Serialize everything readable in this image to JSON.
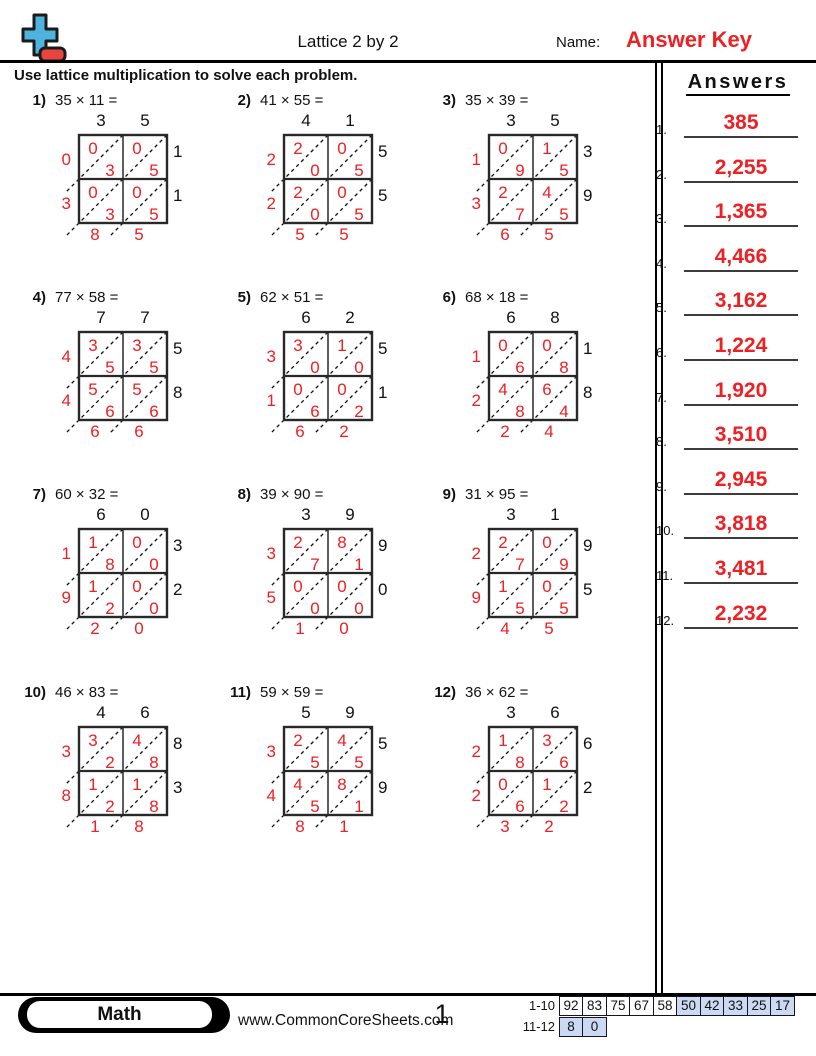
{
  "header": {
    "title": "Lattice 2 by 2",
    "name_label": "Name:",
    "answer_key": "Answer Key"
  },
  "instruction": "Use lattice multiplication to solve each problem.",
  "answers_panel": {
    "title": "Answers",
    "items": [
      {
        "num": "1.",
        "value": "385"
      },
      {
        "num": "2.",
        "value": "2,255"
      },
      {
        "num": "3.",
        "value": "1,365"
      },
      {
        "num": "4.",
        "value": "4,466"
      },
      {
        "num": "5.",
        "value": "3,162"
      },
      {
        "num": "6.",
        "value": "1,224"
      },
      {
        "num": "7.",
        "value": "1,920"
      },
      {
        "num": "8.",
        "value": "3,510"
      },
      {
        "num": "9.",
        "value": "2,945"
      },
      {
        "num": "10.",
        "value": "3,818"
      },
      {
        "num": "11.",
        "value": "3,481"
      },
      {
        "num": "12.",
        "value": "2,232"
      }
    ]
  },
  "problems": [
    {
      "num": "1)",
      "equation": "35 × 11 =",
      "top": [
        "3",
        "5"
      ],
      "right": [
        "1",
        "1"
      ],
      "cells": [
        [
          "0",
          "3"
        ],
        [
          "0",
          "5"
        ],
        [
          "0",
          "3"
        ],
        [
          "0",
          "5"
        ]
      ],
      "left": [
        "0",
        "3"
      ],
      "bottom": [
        "8",
        "5"
      ]
    },
    {
      "num": "2)",
      "equation": "41 × 55 =",
      "top": [
        "4",
        "1"
      ],
      "right": [
        "5",
        "5"
      ],
      "cells": [
        [
          "2",
          "0"
        ],
        [
          "0",
          "5"
        ],
        [
          "2",
          "0"
        ],
        [
          "0",
          "5"
        ]
      ],
      "left": [
        "2",
        "2"
      ],
      "bottom": [
        "5",
        "5"
      ]
    },
    {
      "num": "3)",
      "equation": "35 × 39 =",
      "top": [
        "3",
        "5"
      ],
      "right": [
        "3",
        "9"
      ],
      "cells": [
        [
          "0",
          "9"
        ],
        [
          "1",
          "5"
        ],
        [
          "2",
          "7"
        ],
        [
          "4",
          "5"
        ]
      ],
      "left": [
        "1",
        "3"
      ],
      "bottom": [
        "6",
        "5"
      ]
    },
    {
      "num": "4)",
      "equation": "77 × 58 =",
      "top": [
        "7",
        "7"
      ],
      "right": [
        "5",
        "8"
      ],
      "cells": [
        [
          "3",
          "5"
        ],
        [
          "3",
          "5"
        ],
        [
          "5",
          "6"
        ],
        [
          "5",
          "6"
        ]
      ],
      "left": [
        "4",
        "4"
      ],
      "bottom": [
        "6",
        "6"
      ]
    },
    {
      "num": "5)",
      "equation": "62 × 51 =",
      "top": [
        "6",
        "2"
      ],
      "right": [
        "5",
        "1"
      ],
      "cells": [
        [
          "3",
          "0"
        ],
        [
          "1",
          "0"
        ],
        [
          "0",
          "6"
        ],
        [
          "0",
          "2"
        ]
      ],
      "left": [
        "3",
        "1"
      ],
      "bottom": [
        "6",
        "2"
      ]
    },
    {
      "num": "6)",
      "equation": "68 × 18 =",
      "top": [
        "6",
        "8"
      ],
      "right": [
        "1",
        "8"
      ],
      "cells": [
        [
          "0",
          "6"
        ],
        [
          "0",
          "8"
        ],
        [
          "4",
          "8"
        ],
        [
          "6",
          "4"
        ]
      ],
      "left": [
        "1",
        "2"
      ],
      "bottom": [
        "2",
        "4"
      ]
    },
    {
      "num": "7)",
      "equation": "60 × 32 =",
      "top": [
        "6",
        "0"
      ],
      "right": [
        "3",
        "2"
      ],
      "cells": [
        [
          "1",
          "8"
        ],
        [
          "0",
          "0"
        ],
        [
          "1",
          "2"
        ],
        [
          "0",
          "0"
        ]
      ],
      "left": [
        "1",
        "9"
      ],
      "bottom": [
        "2",
        "0"
      ]
    },
    {
      "num": "8)",
      "equation": "39 × 90 =",
      "top": [
        "3",
        "9"
      ],
      "right": [
        "9",
        "0"
      ],
      "cells": [
        [
          "2",
          "7"
        ],
        [
          "8",
          "1"
        ],
        [
          "0",
          "0"
        ],
        [
          "0",
          "0"
        ]
      ],
      "left": [
        "3",
        "5"
      ],
      "bottom": [
        "1",
        "0"
      ]
    },
    {
      "num": "9)",
      "equation": "31 × 95 =",
      "top": [
        "3",
        "1"
      ],
      "right": [
        "9",
        "5"
      ],
      "cells": [
        [
          "2",
          "7"
        ],
        [
          "0",
          "9"
        ],
        [
          "1",
          "5"
        ],
        [
          "0",
          "5"
        ]
      ],
      "left": [
        "2",
        "9"
      ],
      "bottom": [
        "4",
        "5"
      ]
    },
    {
      "num": "10)",
      "equation": "46 × 83 =",
      "top": [
        "4",
        "6"
      ],
      "right": [
        "8",
        "3"
      ],
      "cells": [
        [
          "3",
          "2"
        ],
        [
          "4",
          "8"
        ],
        [
          "1",
          "2"
        ],
        [
          "1",
          "8"
        ]
      ],
      "left": [
        "3",
        "8"
      ],
      "bottom": [
        "1",
        "8"
      ]
    },
    {
      "num": "11)",
      "equation": "59 × 59 =",
      "top": [
        "5",
        "9"
      ],
      "right": [
        "5",
        "9"
      ],
      "cells": [
        [
          "2",
          "5"
        ],
        [
          "4",
          "5"
        ],
        [
          "4",
          "5"
        ],
        [
          "8",
          "1"
        ]
      ],
      "left": [
        "3",
        "4"
      ],
      "bottom": [
        "8",
        "1"
      ]
    },
    {
      "num": "12)",
      "equation": "36 × 62 =",
      "top": [
        "3",
        "6"
      ],
      "right": [
        "6",
        "2"
      ],
      "cells": [
        [
          "1",
          "8"
        ],
        [
          "3",
          "6"
        ],
        [
          "0",
          "6"
        ],
        [
          "1",
          "2"
        ]
      ],
      "left": [
        "2",
        "2"
      ],
      "bottom": [
        "3",
        "2"
      ]
    }
  ],
  "footer": {
    "subject": "Math",
    "website": "www.CommonCoreSheets.com",
    "page_number": "1",
    "grading": {
      "row1_label": "1-10",
      "row1_cells": [
        "92",
        "83",
        "75",
        "67",
        "58",
        "50",
        "42",
        "33",
        "25",
        "17"
      ],
      "row1_highlight_start": 5,
      "row2_label": "11-12",
      "row2_cells": [
        "8",
        "0"
      ]
    }
  },
  "colors": {
    "red": "#ed2024",
    "logo_blue": "#4fb3e0",
    "logo_red": "#e8453e",
    "table_blue": "#ccd9f2"
  }
}
